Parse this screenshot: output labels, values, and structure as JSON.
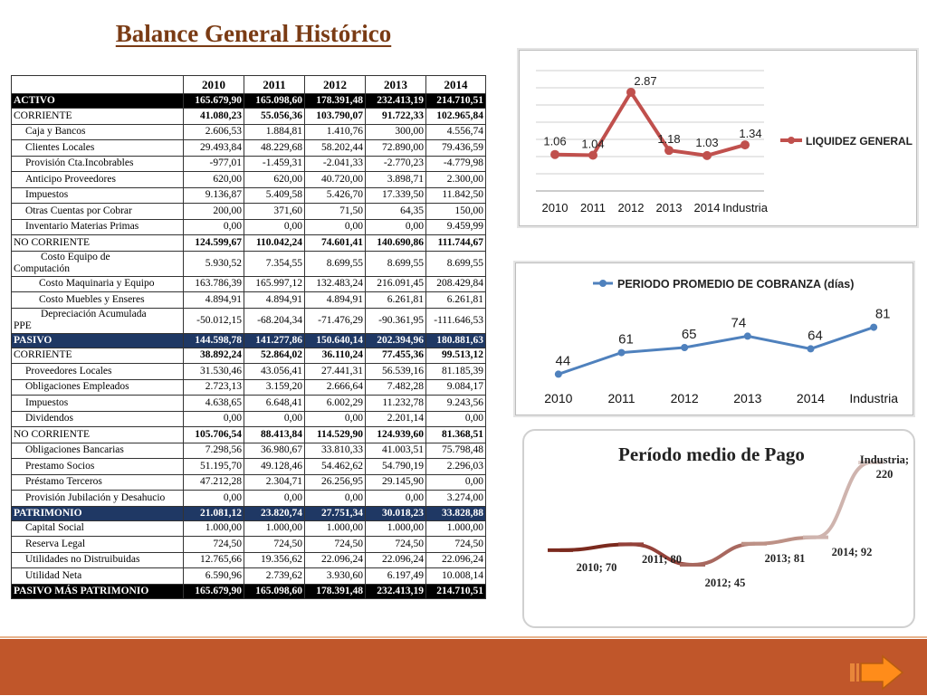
{
  "title": "Balance General Histórico",
  "balance": {
    "years": [
      "2010",
      "2011",
      "2012",
      "2013",
      "2014"
    ],
    "rows": [
      {
        "label": "ACTIVO",
        "style": "dark",
        "values": [
          "165.679,90",
          "165.098,60",
          "178.391,48",
          "232.413,19",
          "214.710,51"
        ]
      },
      {
        "label": "CORRIENTE",
        "style": "bold",
        "values": [
          "41.080,23",
          "55.056,36",
          "103.790,07",
          "91.722,33",
          "102.965,84"
        ]
      },
      {
        "label": "Caja y Bancos",
        "style": "ind",
        "values": [
          "2.606,53",
          "1.884,81",
          "1.410,76",
          "300,00",
          "4.556,74"
        ]
      },
      {
        "label": "Clientes Locales",
        "style": "ind",
        "values": [
          "29.493,84",
          "48.229,68",
          "58.202,44",
          "72.890,00",
          "79.436,59"
        ]
      },
      {
        "label": "Provisión Cta.Incobrables",
        "style": "ind",
        "values": [
          "-977,01",
          "-1.459,31",
          "-2.041,33",
          "-2.770,23",
          "-4.779,98"
        ]
      },
      {
        "label": "Anticipo Proveedores",
        "style": "ind",
        "values": [
          "620,00",
          "620,00",
          "40.720,00",
          "3.898,71",
          "2.300,00"
        ]
      },
      {
        "label": "Impuestos",
        "style": "ind",
        "values": [
          "9.136,87",
          "5.409,58",
          "5.426,70",
          "17.339,50",
          "11.842,50"
        ]
      },
      {
        "label": "Otras Cuentas por Cobrar",
        "style": "ind",
        "values": [
          "200,00",
          "371,60",
          "71,50",
          "64,35",
          "150,00"
        ]
      },
      {
        "label": "Inventario Materias Primas",
        "style": "ind",
        "values": [
          "0,00",
          "0,00",
          "0,00",
          "0,00",
          "9.459,99"
        ]
      },
      {
        "label": "NO CORRIENTE",
        "style": "bold",
        "values": [
          "124.599,67",
          "110.042,24",
          "74.601,41",
          "140.690,86",
          "111.744,67"
        ]
      },
      {
        "label": "Costo Equipo de",
        "label2": "Computación",
        "style": "tall",
        "values": [
          "5.930,52",
          "7.354,55",
          "8.699,55",
          "8.699,55",
          "8.699,55"
        ]
      },
      {
        "label": "Costo Maquinaria y Equipo",
        "style": "ind2",
        "values": [
          "163.786,39",
          "165.997,12",
          "132.483,24",
          "216.091,45",
          "208.429,84"
        ]
      },
      {
        "label": "Costo Muebles y Enseres",
        "style": "ind2",
        "values": [
          "4.894,91",
          "4.894,91",
          "4.894,91",
          "6.261,81",
          "6.261,81"
        ]
      },
      {
        "label": "Depreciación Acumulada",
        "label2": "PPE",
        "style": "tall",
        "values": [
          "-50.012,15",
          "-68.204,34",
          "-71.476,29",
          "-90.361,95",
          "-111.646,53"
        ]
      },
      {
        "label": "PASIVO",
        "style": "blue",
        "values": [
          "144.598,78",
          "141.277,86",
          "150.640,14",
          "202.394,96",
          "180.881,63"
        ]
      },
      {
        "label": "CORRIENTE",
        "style": "bold",
        "values": [
          "38.892,24",
          "52.864,02",
          "36.110,24",
          "77.455,36",
          "99.513,12"
        ]
      },
      {
        "label": "Proveedores Locales",
        "style": "ind",
        "values": [
          "31.530,46",
          "43.056,41",
          "27.441,31",
          "56.539,16",
          "81.185,39"
        ]
      },
      {
        "label": "Obligaciones Empleados",
        "style": "ind",
        "values": [
          "2.723,13",
          "3.159,20",
          "2.666,64",
          "7.482,28",
          "9.084,17"
        ]
      },
      {
        "label": "Impuestos",
        "style": "ind",
        "values": [
          "4.638,65",
          "6.648,41",
          "6.002,29",
          "11.232,78",
          "9.243,56"
        ]
      },
      {
        "label": "Dividendos",
        "style": "ind",
        "values": [
          "0,00",
          "0,00",
          "0,00",
          "2.201,14",
          "0,00"
        ]
      },
      {
        "label": "NO CORRIENTE",
        "style": "bold",
        "values": [
          "105.706,54",
          "88.413,84",
          "114.529,90",
          "124.939,60",
          "81.368,51"
        ]
      },
      {
        "label": "Obligaciones Bancarias",
        "style": "ind",
        "values": [
          "7.298,56",
          "36.980,67",
          "33.810,33",
          "41.003,51",
          "75.798,48"
        ]
      },
      {
        "label": "Prestamo Socios",
        "style": "ind",
        "values": [
          "51.195,70",
          "49.128,46",
          "54.462,62",
          "54.790,19",
          "2.296,03"
        ]
      },
      {
        "label": "Préstamo Terceros",
        "style": "ind",
        "values": [
          "47.212,28",
          "2.304,71",
          "26.256,95",
          "29.145,90",
          "0,00"
        ]
      },
      {
        "label": "Provisión Jubilación y Desahucio",
        "style": "ind",
        "values": [
          "0,00",
          "0,00",
          "0,00",
          "0,00",
          "3.274,00"
        ]
      },
      {
        "label": "PATRIMONIO",
        "style": "blue",
        "values": [
          "21.081,12",
          "23.820,74",
          "27.751,34",
          "30.018,23",
          "33.828,88"
        ]
      },
      {
        "label": "Capital Social",
        "style": "ind",
        "values": [
          "1.000,00",
          "1.000,00",
          "1.000,00",
          "1.000,00",
          "1.000,00"
        ]
      },
      {
        "label": "Reserva Legal",
        "style": "ind",
        "values": [
          "724,50",
          "724,50",
          "724,50",
          "724,50",
          "724,50"
        ]
      },
      {
        "label": "Utilidades no Distruibuidas",
        "style": "ind",
        "values": [
          "12.765,66",
          "19.356,62",
          "22.096,24",
          "22.096,24",
          "22.096,24"
        ]
      },
      {
        "label": "Utilidad Neta",
        "style": "ind",
        "values": [
          "6.590,96",
          "2.739,62",
          "3.930,60",
          "6.197,49",
          "10.008,14"
        ]
      },
      {
        "label": "PASIVO MÁS PATRIMONIO",
        "style": "dark",
        "values": [
          "165.679,90",
          "165.098,60",
          "178.391,48",
          "232.413,19",
          "214.710,51"
        ]
      }
    ]
  },
  "chart_data": [
    {
      "type": "line",
      "title": "",
      "categories": [
        "2010",
        "2011",
        "2012",
        "2013",
        "2014",
        "Industria"
      ],
      "series": [
        {
          "name": "LIQUIDEZ GENERAL",
          "values": [
            1.06,
            1.04,
            2.87,
            1.18,
            1.03,
            1.34
          ]
        }
      ],
      "data_labels": [
        "1.06",
        "1.04",
        "2.87",
        "1.18",
        "1.03",
        "1.34"
      ],
      "ylim": [
        0,
        3.5
      ],
      "grid": true,
      "legend": "right",
      "color": "#c0504d"
    },
    {
      "type": "line",
      "title": "",
      "categories": [
        "2010",
        "2011",
        "2012",
        "2013",
        "2014",
        "Industria"
      ],
      "series": [
        {
          "name": "PERIODO PROMEDIO DE COBRANZA (días)",
          "values": [
            44,
            61,
            65,
            74,
            64,
            81
          ]
        }
      ],
      "data_labels": [
        "44",
        "61",
        "65",
        "74",
        "64",
        "81"
      ],
      "grid": false,
      "legend": "top",
      "color": "#4f81bd"
    },
    {
      "type": "line",
      "title": "Período medio de Pago",
      "categories": [
        "2010",
        "2011",
        "2012",
        "2013",
        "2014",
        "Industria"
      ],
      "series": [
        {
          "name": "",
          "values": [
            70,
            80,
            45,
            81,
            92,
            220
          ]
        }
      ],
      "data_labels": [
        "2010; 70",
        "2011; 80",
        "2012; 45",
        "2013; 81",
        "2014; 92",
        "Industria; 220"
      ],
      "grid": false,
      "legend": "none",
      "colors": [
        "#7b2a1e",
        "#94423a",
        "#a8685f",
        "#bd9186",
        "#cfb4ae",
        "#e2d2ce"
      ]
    }
  ],
  "nav": {
    "next_icon": "arrow-right-icon"
  },
  "theme": {
    "footer": "#c0562a",
    "title": "#7a3b14",
    "accent_blue": "#1f3864"
  }
}
